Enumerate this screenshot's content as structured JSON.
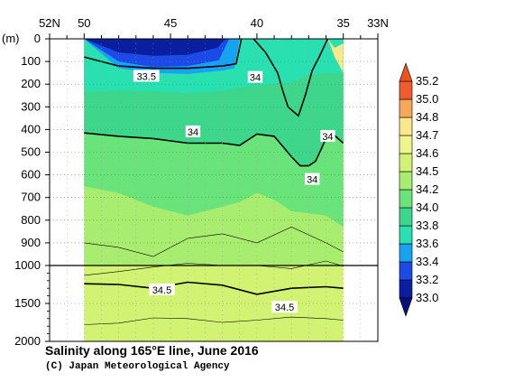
{
  "chart_data": {
    "type": "heatmap",
    "title": "Salinity along 165°E line, June 2016",
    "credit": "(C) Japan Meteorological Agency",
    "x": {
      "ticks": [
        {
          "lat": 52,
          "label": "52N"
        },
        {
          "lat": 50,
          "label": "50"
        },
        {
          "lat": 45,
          "label": "45"
        },
        {
          "lat": 40,
          "label": "40"
        },
        {
          "lat": 35,
          "label": "35"
        },
        {
          "lat": 33,
          "label": "33N"
        }
      ],
      "range": [
        52,
        33
      ],
      "data_extent": [
        50,
        35
      ]
    },
    "y": {
      "unit_label": "(m)",
      "upper_ticks": [
        0,
        100,
        200,
        300,
        400,
        500,
        600,
        700,
        800,
        900,
        1000
      ],
      "lower_ticks": [
        1500,
        2000
      ],
      "break_depth": 1000,
      "range": [
        0,
        2000
      ]
    },
    "colorbar": {
      "levels": [
        33.0,
        33.2,
        33.4,
        33.6,
        33.8,
        34.0,
        34.2,
        34.5,
        34.6,
        34.7,
        34.8,
        35.0,
        35.2
      ],
      "labels": [
        "33.0",
        "33.2",
        "33.4",
        "33.6",
        "33.8",
        "34.0",
        "34.2",
        "34.5",
        "34.6",
        "34.7",
        "34.8",
        "35.0",
        "35.2"
      ],
      "colors": [
        "#0a1fa0",
        "#1c4ae6",
        "#16a4f2",
        "#28e0b0",
        "#3ed68a",
        "#6ae37a",
        "#a8ec70",
        "#d2f274",
        "#eef58a",
        "#f9e98c",
        "#f7a65a",
        "#ee5c30"
      ]
    },
    "fill_levels": [
      {
        "level": 33.8,
        "lat": [
          50,
          48,
          46,
          44,
          42,
          41,
          40,
          38,
          37,
          36,
          35
        ],
        "depth": [
          235,
          228,
          232,
          240,
          230,
          215,
          205,
          190,
          160,
          150,
          155
        ]
      },
      {
        "level": 34.0,
        "lat": [
          50,
          48,
          46,
          44,
          42,
          41,
          40,
          39,
          38,
          37.5,
          37,
          36.6,
          36.3,
          36,
          35.6,
          35
        ],
        "depth": [
          415,
          430,
          440,
          460,
          460,
          470,
          420,
          430,
          520,
          560,
          560,
          540,
          490,
          440,
          420,
          460
        ]
      },
      {
        "level": 34.2,
        "lat": [
          50,
          48,
          46,
          44,
          42,
          41,
          40,
          39,
          38,
          37,
          36,
          35
        ],
        "depth": [
          650,
          680,
          740,
          780,
          740,
          720,
          680,
          710,
          760,
          770,
          780,
          830
        ]
      },
      {
        "level": 34.5,
        "lat": [
          50,
          35
        ],
        "depth": [
          1000,
          1000
        ]
      }
    ],
    "surface_patches": [
      {
        "level": 33.0,
        "lat": [
          50,
          47.5,
          46,
          44.5,
          43.5,
          42.3
        ],
        "depth": [
          0,
          25,
          35,
          30,
          25,
          0
        ]
      },
      {
        "level": 33.2,
        "lat": [
          50,
          48,
          46,
          44,
          42.3,
          41.8
        ],
        "depth": [
          0,
          60,
          75,
          70,
          40,
          0
        ]
      },
      {
        "level": 33.4,
        "lat": [
          50,
          48,
          46,
          44,
          42.2,
          41.6
        ],
        "depth": [
          0,
          100,
          125,
          120,
          95,
          0
        ]
      },
      {
        "level": 33.6,
        "lat": [
          50,
          48,
          46,
          44,
          42,
          41.3,
          41.0
        ],
        "depth": [
          0,
          130,
          150,
          155,
          140,
          130,
          0
        ]
      }
    ],
    "north_fill_color": "#2fd892",
    "south_core": {
      "level": 34.7,
      "lat": [
        35.9,
        35.5,
        35.0,
        35.0,
        35.5
      ],
      "depth": [
        0,
        40,
        20,
        150,
        80
      ]
    },
    "contours": [
      {
        "level": 34.0,
        "bold": true,
        "lat": [
          50,
          48,
          46,
          44,
          42,
          41,
          40,
          39,
          38,
          37.5,
          37,
          36.6,
          36.3,
          36,
          35.6,
          35
        ],
        "depth": [
          415,
          430,
          440,
          460,
          460,
          470,
          420,
          430,
          520,
          560,
          560,
          540,
          490,
          440,
          420,
          460
        ]
      },
      {
        "level": 34.5,
        "bold": true,
        "lat": [
          50,
          48,
          46,
          44,
          42,
          40,
          38,
          36,
          35
        ],
        "depth": [
          1240,
          1250,
          1300,
          1220,
          1260,
          1380,
          1300,
          1280,
          1300
        ]
      },
      {
        "level": 33.5,
        "bold": true,
        "lat": [
          50,
          48,
          46,
          44,
          42,
          41.2,
          40.9
        ],
        "depth": [
          80,
          120,
          130,
          130,
          120,
          110,
          0
        ]
      },
      {
        "level": 34.0,
        "bold": true,
        "lat": [
          40.2,
          39.5,
          38.8,
          38.5,
          38.2,
          37.6,
          37.2,
          36.8,
          36.4,
          35.9
        ],
        "depth": [
          0,
          60,
          150,
          230,
          300,
          340,
          250,
          140,
          80,
          0
        ]
      },
      {
        "level": 34.3,
        "bold": false,
        "lat": [
          50,
          48,
          46,
          44,
          42,
          40,
          38,
          36,
          35
        ],
        "depth": [
          900,
          920,
          960,
          880,
          860,
          900,
          830,
          900,
          940
        ]
      },
      {
        "level": 34.4,
        "bold": false,
        "lat": [
          50,
          48,
          46,
          44,
          42,
          40,
          38,
          36,
          35
        ],
        "depth": [
          1130,
          1080,
          1020,
          990,
          1000,
          1000,
          1040,
          980,
          1010
        ]
      },
      {
        "level": 34.6,
        "bold": false,
        "lat": [
          50,
          48,
          46,
          44,
          42,
          40,
          38,
          36,
          35
        ],
        "depth": [
          1780,
          1760,
          1690,
          1700,
          1750,
          1720,
          1680,
          1700,
          1720
        ]
      }
    ],
    "labels": [
      {
        "text": "33.5",
        "lat": 46.4,
        "depth": 165
      },
      {
        "text": "34",
        "lat": 40.1,
        "depth": 170
      },
      {
        "text": "34",
        "lat": 43.7,
        "depth": 410
      },
      {
        "text": "34",
        "lat": 35.9,
        "depth": 430
      },
      {
        "text": "34",
        "lat": 36.8,
        "depth": 620
      },
      {
        "text": "34.5",
        "lat": 45.5,
        "depth": 1320
      },
      {
        "text": "34.5",
        "lat": 38.4,
        "depth": 1550
      }
    ]
  }
}
